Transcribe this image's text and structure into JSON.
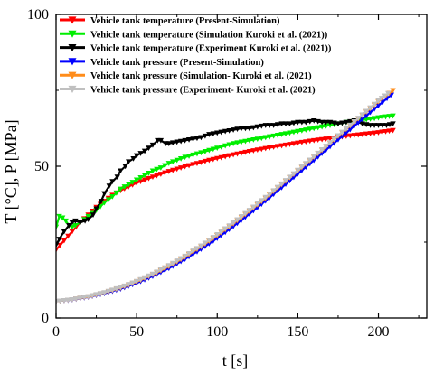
{
  "chart_data": {
    "type": "line",
    "xlabel": "t [s]",
    "ylabel": "T [°C], P [MPa]",
    "xlim": [
      0,
      230
    ],
    "ylim": [
      0,
      100
    ],
    "x_ticks": [
      0,
      50,
      100,
      150,
      200
    ],
    "y_ticks": [
      0,
      50,
      100
    ],
    "grid": false,
    "legend_position": "top-left",
    "series": [
      {
        "name": "Vehicle tank temperature (Present-Simulation)",
        "color": "#ff0000",
        "marker": "triangle-down",
        "x": [
          0,
          5,
          10,
          15,
          20,
          25,
          30,
          35,
          40,
          45,
          50,
          55,
          60,
          65,
          70,
          75,
          80,
          85,
          90,
          95,
          100,
          110,
          120,
          130,
          140,
          150,
          160,
          170,
          180,
          190,
          200,
          209
        ],
        "y": [
          22.5,
          25.5,
          28.5,
          31.5,
          34,
          36.5,
          38.5,
          40.5,
          42,
          43.3,
          44.5,
          45.5,
          46.5,
          47.4,
          48.3,
          49.1,
          49.9,
          50.6,
          51.3,
          52,
          52.6,
          53.8,
          54.9,
          55.9,
          56.8,
          57.7,
          58.5,
          59.2,
          59.9,
          60.5,
          61.1,
          61.8
        ]
      },
      {
        "name": "Vehicle tank temperature (Simulation Kuroki et al. (2021))",
        "color": "#00ee00",
        "marker": "triangle-down",
        "x": [
          0,
          2,
          4,
          6,
          8,
          10,
          12,
          15,
          20,
          25,
          30,
          35,
          40,
          45,
          50,
          55,
          60,
          65,
          70,
          80,
          90,
          100,
          110,
          120,
          130,
          140,
          150,
          160,
          170,
          180,
          190,
          200,
          209
        ],
        "y": [
          30,
          33.5,
          33,
          32,
          30.5,
          30,
          30.5,
          31.5,
          33.5,
          35.5,
          38,
          40,
          42.5,
          44,
          45.5,
          47,
          48.5,
          49.5,
          51,
          53,
          54.5,
          56,
          57.5,
          58.5,
          59.5,
          60.5,
          61.5,
          62.5,
          63.5,
          64.5,
          65.2,
          66,
          66.6
        ]
      },
      {
        "name": "Vehicle tank temperature (Experiment Kuroki et al. (2021))",
        "color": "#000000",
        "marker": "triangle-down",
        "x": [
          0,
          2,
          5,
          8,
          10,
          12,
          15,
          18,
          20,
          23,
          25,
          28,
          30,
          33,
          35,
          38,
          40,
          43,
          45,
          48,
          50,
          55,
          60,
          63,
          65,
          68,
          70,
          75,
          80,
          85,
          90,
          95,
          100,
          105,
          110,
          115,
          120,
          125,
          130,
          135,
          140,
          145,
          150,
          155,
          160,
          165,
          170,
          175,
          180,
          185,
          190,
          195,
          200,
          205,
          209
        ],
        "y": [
          24,
          26,
          28.5,
          30.5,
          31.5,
          32,
          31.5,
          32,
          32.5,
          34,
          36,
          38.5,
          41,
          43.5,
          45,
          46.5,
          48.5,
          50,
          51.5,
          52.5,
          53.5,
          55,
          57,
          58.5,
          58.5,
          57.5,
          57.5,
          58,
          58.5,
          59,
          59.5,
          60.5,
          61,
          61.5,
          62,
          62.5,
          62.5,
          63,
          63.5,
          63.5,
          64,
          64,
          64.5,
          64.5,
          65,
          64.5,
          64.5,
          64,
          64.5,
          65,
          64,
          63.5,
          63.5,
          63.5,
          64
        ]
      },
      {
        "name": "Vehicle tank pressure (Present-Simulation)",
        "color": "#0000ff",
        "marker": "triangle-down",
        "x": [
          0,
          10,
          20,
          30,
          40,
          50,
          60,
          70,
          80,
          90,
          100,
          110,
          120,
          130,
          140,
          150,
          160,
          170,
          180,
          190,
          200,
          208
        ],
        "y": [
          5.5,
          6,
          6.9,
          8.1,
          9.6,
          11.5,
          13.8,
          16.4,
          19.4,
          22.7,
          26.3,
          30.2,
          34.3,
          38.6,
          43,
          47.5,
          52,
          56.5,
          61,
          65.5,
          70,
          73.5
        ]
      },
      {
        "name": "Vehicle tank pressure (Simulation- Kuroki et al. (2021)",
        "color": "#ff8c1a",
        "marker": "triangle-down",
        "x": [
          0,
          10,
          20,
          30,
          40,
          50,
          60,
          70,
          80,
          90,
          100,
          110,
          120,
          130,
          140,
          150,
          160,
          170,
          180,
          190,
          200,
          209
        ],
        "y": [
          5.5,
          6.1,
          7,
          8.3,
          9.9,
          11.9,
          14.3,
          17,
          20.1,
          23.5,
          27.2,
          31.1,
          35.2,
          39.5,
          44,
          48.5,
          53,
          57.6,
          62.2,
          66.8,
          71.3,
          75
        ]
      },
      {
        "name": "Vehicle tank pressure (Experiment- Kuroki et al. (2021)",
        "color": "#c0c0c0",
        "marker": "triangle-down",
        "x": [
          0,
          10,
          20,
          30,
          40,
          50,
          60,
          70,
          80,
          90,
          100,
          110,
          120,
          130,
          140,
          150,
          160,
          170,
          180,
          190,
          200,
          206
        ],
        "y": [
          5.5,
          6.1,
          7.1,
          8.4,
          10.1,
          12.1,
          14.5,
          17.3,
          20.4,
          23.8,
          27.5,
          31.4,
          35.5,
          39.8,
          44.2,
          48.7,
          53.2,
          57.8,
          62.4,
          67,
          71.6,
          74
        ]
      }
    ]
  }
}
